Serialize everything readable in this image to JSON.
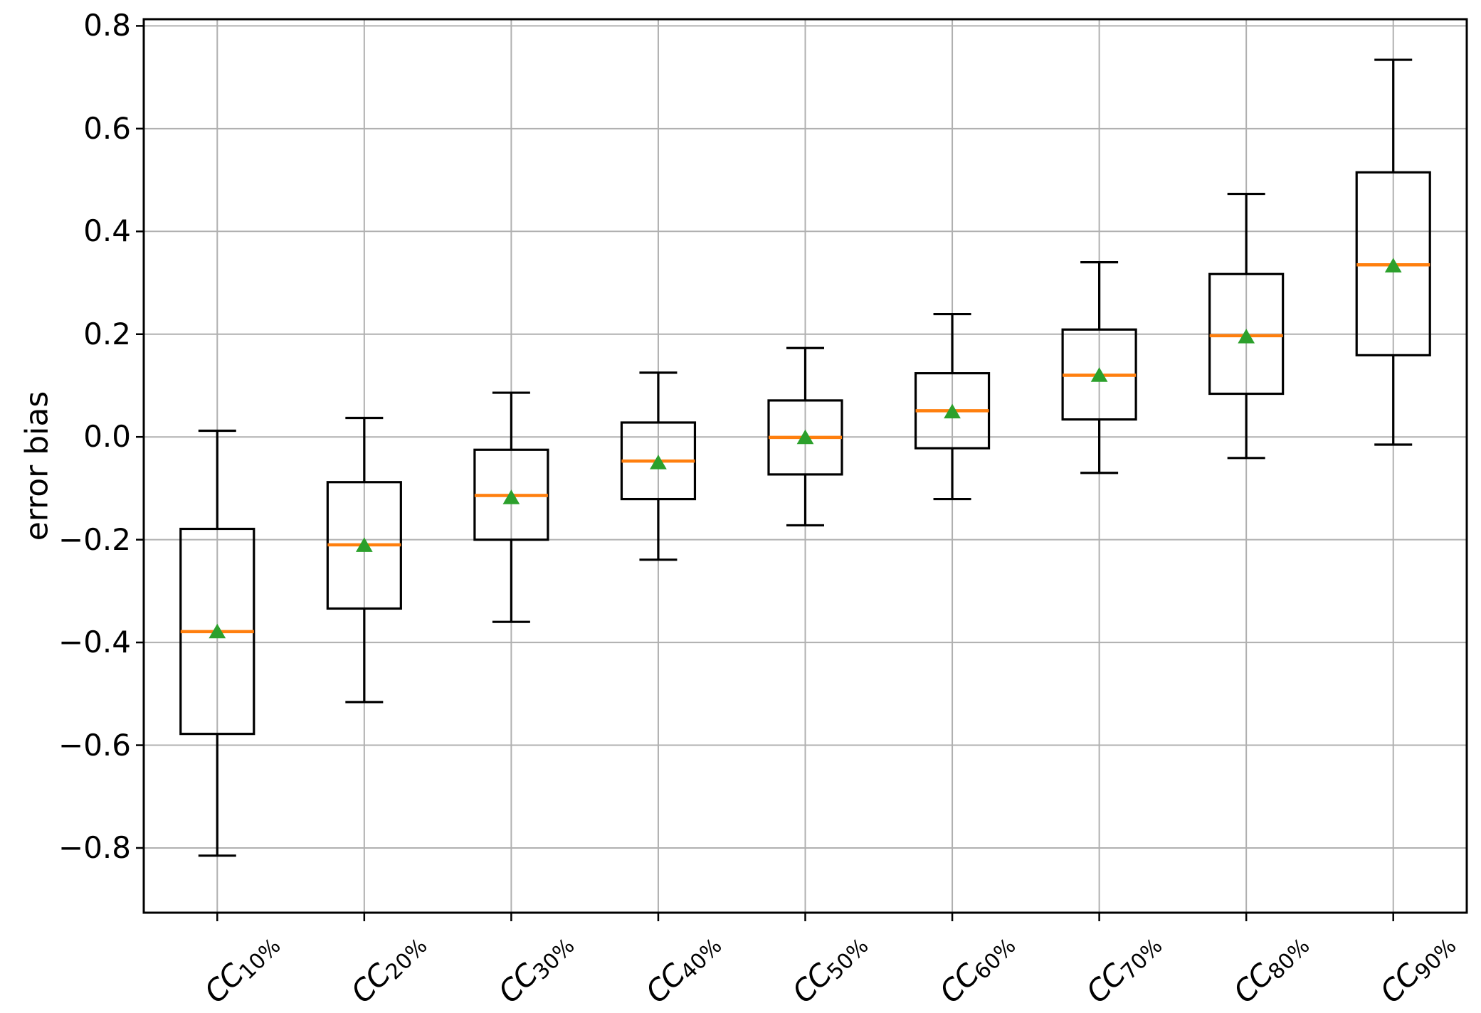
{
  "chart_data": {
    "type": "boxplot",
    "title": "",
    "xlabel": "",
    "ylabel": "error bias",
    "categories": [
      "CC10%",
      "CC20%",
      "CC30%",
      "CC40%",
      "CC50%",
      "CC60%",
      "CC70%",
      "CC80%",
      "CC90%"
    ],
    "category_rich": [
      {
        "base": "CC",
        "sub": "10%"
      },
      {
        "base": "CC",
        "sub": "20%"
      },
      {
        "base": "CC",
        "sub": "30%"
      },
      {
        "base": "CC",
        "sub": "40%"
      },
      {
        "base": "CC",
        "sub": "50%"
      },
      {
        "base": "CC",
        "sub": "60%"
      },
      {
        "base": "CC",
        "sub": "70%"
      },
      {
        "base": "CC",
        "sub": "80%"
      },
      {
        "base": "CC",
        "sub": "90%"
      }
    ],
    "series": [
      {
        "label": "CC10%",
        "whislo": -0.815,
        "q1": -0.578,
        "med": -0.379,
        "mean": -0.378,
        "q3": -0.179,
        "whishi": 0.012
      },
      {
        "label": "CC20%",
        "whislo": -0.516,
        "q1": -0.334,
        "med": -0.21,
        "mean": -0.21,
        "q3": -0.088,
        "whishi": 0.037
      },
      {
        "label": "CC30%",
        "whislo": -0.36,
        "q1": -0.2,
        "med": -0.114,
        "mean": -0.117,
        "q3": -0.025,
        "whishi": 0.086
      },
      {
        "label": "CC40%",
        "whislo": -0.239,
        "q1": -0.121,
        "med": -0.047,
        "mean": -0.049,
        "q3": 0.028,
        "whishi": 0.125
      },
      {
        "label": "CC50%",
        "whislo": -0.172,
        "q1": -0.073,
        "med": -0.001,
        "mean": 0.0,
        "q3": 0.071,
        "whishi": 0.173
      },
      {
        "label": "CC60%",
        "whislo": -0.121,
        "q1": -0.022,
        "med": 0.051,
        "mean": 0.05,
        "q3": 0.124,
        "whishi": 0.239
      },
      {
        "label": "CC70%",
        "whislo": -0.07,
        "q1": 0.034,
        "med": 0.12,
        "mean": 0.121,
        "q3": 0.209,
        "whishi": 0.34
      },
      {
        "label": "CC80%",
        "whislo": -0.041,
        "q1": 0.084,
        "med": 0.197,
        "mean": 0.196,
        "q3": 0.317,
        "whishi": 0.473
      },
      {
        "label": "CC90%",
        "whislo": -0.015,
        "q1": 0.159,
        "med": 0.335,
        "mean": 0.334,
        "q3": 0.515,
        "whishi": 0.734
      }
    ],
    "ylim": [
      -0.926,
      0.813
    ],
    "yticks": [
      -0.8,
      -0.6,
      -0.4,
      -0.2,
      0.0,
      0.2,
      0.4,
      0.6,
      0.8
    ],
    "ytick_labels": [
      "−0.8",
      "−0.6",
      "−0.4",
      "−0.2",
      "0.0",
      "0.2",
      "0.4",
      "0.6",
      "0.8"
    ],
    "grid": true,
    "legend_position": "none",
    "colors": {
      "median": "#ff7f0e",
      "mean_marker": "#2ca02c",
      "box_line": "#000000",
      "whisker_line": "#000000",
      "grid": "#b0b0b0",
      "spine": "#000000",
      "background": "#ffffff",
      "text": "#000000"
    }
  }
}
